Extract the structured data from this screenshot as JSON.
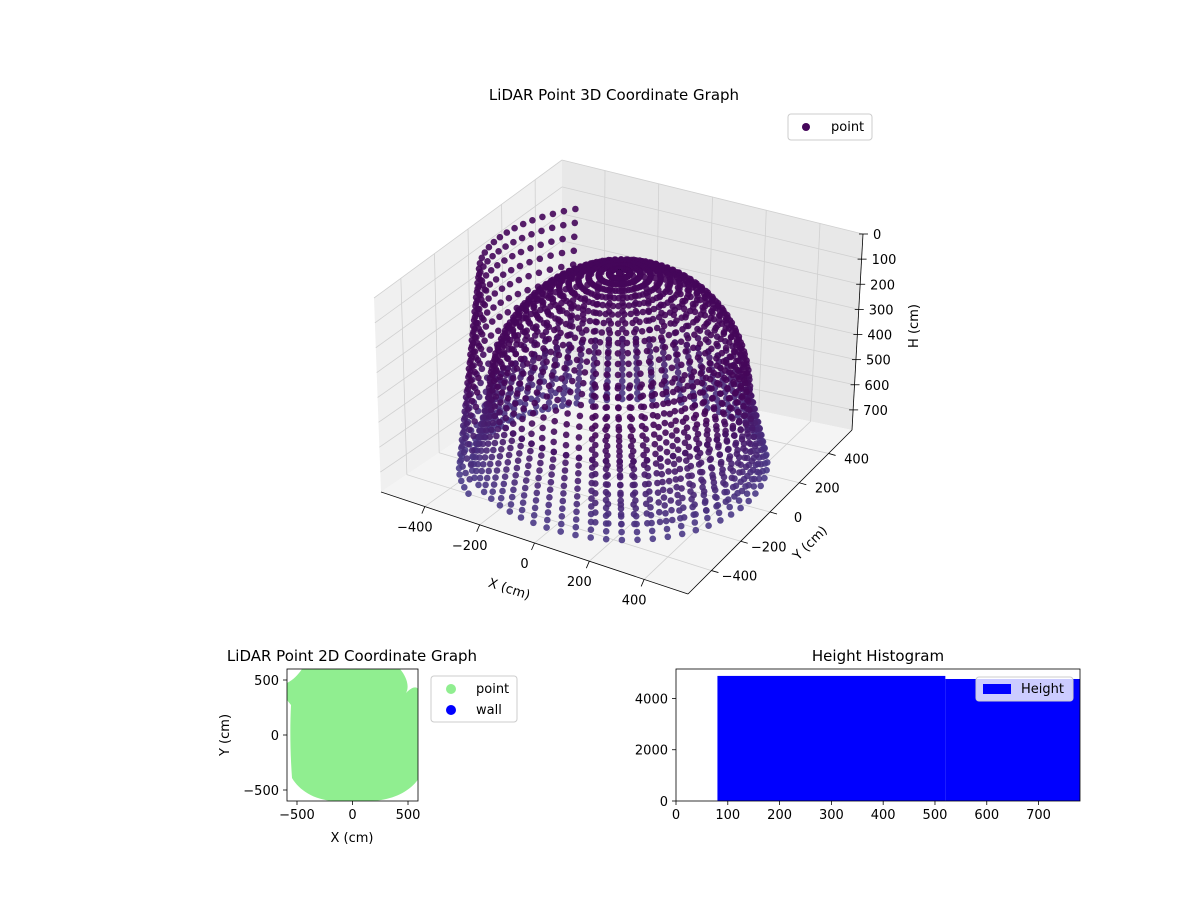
{
  "chart_data": [
    {
      "type": "scatter",
      "projection": "3d",
      "title": "LiDAR Point 3D Coordinate Graph",
      "xlabel": "X (cm)",
      "ylabel": "Y (cm)",
      "zlabel": "H (cm)",
      "xlim": [
        -560,
        560
      ],
      "ylim": [
        -560,
        560
      ],
      "zlim": [
        780,
        0
      ],
      "x_ticks": [
        -400,
        -200,
        0,
        200,
        400
      ],
      "y_ticks": [
        -400,
        -200,
        0,
        200,
        400
      ],
      "z_ticks": [
        0,
        100,
        200,
        300,
        400,
        500,
        600,
        700
      ],
      "z_inverted": true,
      "grid": true,
      "legend": {
        "placement": "upper-right",
        "entries": [
          "point"
        ]
      },
      "colormap": "viridis (dark purple range)",
      "colors": {
        "high": "#45075a",
        "low": "#4b3d8a"
      },
      "series": [
        {
          "name": "point",
          "description_values": {
            "dome": {
              "center": [
                0,
                0
              ],
              "radius": 420,
              "apex_h": 20,
              "rim_h": 500
            },
            "walls": [
              {
                "side": "front-right",
                "radius": 480,
                "h_range": [
                  230,
                  700
                ]
              },
              {
                "side": "left",
                "radius": 520,
                "h_range": [
                  0,
                  780
                ]
              }
            ],
            "floor_h": 760
          }
        }
      ]
    },
    {
      "type": "scatter",
      "title": "LiDAR Point 2D Coordinate Graph",
      "xlabel": "X (cm)",
      "ylabel": "Y (cm)",
      "xlim": [
        -590,
        590
      ],
      "ylim": [
        -600,
        600
      ],
      "x_ticks": [
        -500,
        0,
        500
      ],
      "y_ticks": [
        -500,
        0,
        500
      ],
      "legend": {
        "placement": "outside-right",
        "entries": [
          "point",
          "wall"
        ]
      },
      "series": [
        {
          "name": "point",
          "color": "#90ee90",
          "extent": {
            "x": [
              -590,
              590
            ],
            "y": [
              -600,
              600
            ]
          }
        },
        {
          "name": "wall",
          "color": "#0000ff",
          "values": []
        }
      ]
    },
    {
      "type": "bar",
      "title": "Height Histogram",
      "xlabel": "",
      "ylabel": "",
      "xlim": [
        0,
        780
      ],
      "ylim": [
        0,
        5150
      ],
      "x_ticks": [
        0,
        100,
        200,
        300,
        400,
        500,
        600,
        700
      ],
      "y_ticks": [
        0,
        2000,
        4000
      ],
      "legend": {
        "placement": "upper-right",
        "entries": [
          "Height"
        ]
      },
      "color": "#0000ff",
      "bins": [
        {
          "start": 80,
          "end": 520,
          "count": 4880
        },
        {
          "start": 520,
          "end": 780,
          "count": 4760
        }
      ]
    }
  ]
}
